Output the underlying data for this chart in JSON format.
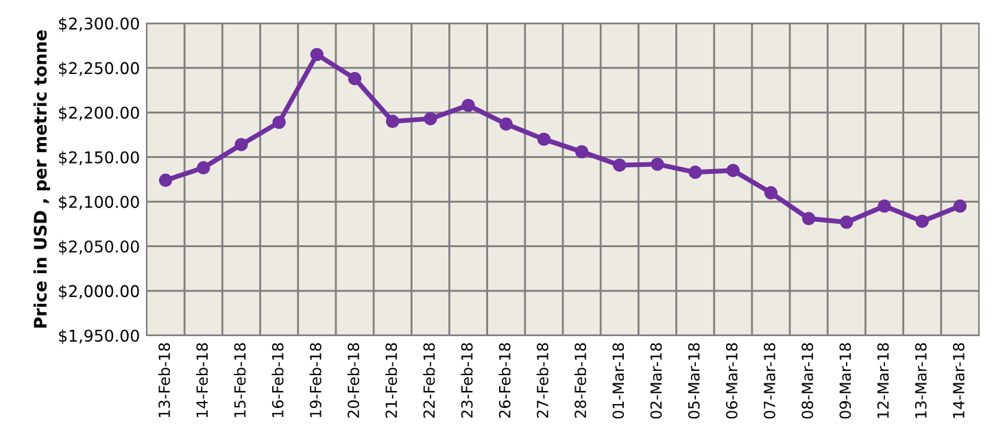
{
  "chart_data": {
    "type": "line",
    "ylabel": "Price in USD , per metric tonne",
    "categories": [
      "13-Feb-18",
      "14-Feb-18",
      "15-Feb-18",
      "16-Feb-18",
      "19-Feb-18",
      "20-Feb-18",
      "21-Feb-18",
      "22-Feb-18",
      "23-Feb-18",
      "26-Feb-18",
      "27-Feb-18",
      "28-Feb-18",
      "01-Mar-18",
      "02-Mar-18",
      "05-Mar-18",
      "06-Mar-18",
      "07-Mar-18",
      "08-Mar-18",
      "09-Mar-18",
      "12-Mar-18",
      "13-Mar-18",
      "14-Mar-18"
    ],
    "series": [
      {
        "color": "#7030a0",
        "values": [
          2124,
          2138,
          2164,
          2189,
          2265,
          2238,
          2190,
          2193,
          2208,
          2187,
          2170,
          2156,
          2141,
          2142,
          2133,
          2135,
          2110,
          2081,
          2077,
          2095,
          2078,
          2095
        ]
      }
    ],
    "ylim": [
      1950,
      2300
    ],
    "yticks": [
      {
        "value": 1950,
        "label": "$1,950.00"
      },
      {
        "value": 2000,
        "label": "$2,000.00"
      },
      {
        "value": 2050,
        "label": "$2,050.00"
      },
      {
        "value": 2100,
        "label": "$2,100.00"
      },
      {
        "value": 2150,
        "label": "$2,150.00"
      },
      {
        "value": 2200,
        "label": "$2,200.00"
      },
      {
        "value": 2250,
        "label": "$2,250.00"
      },
      {
        "value": 2300,
        "label": "$2,300.00"
      }
    ],
    "grid": true,
    "marker": "circle",
    "line_style": "solid"
  }
}
